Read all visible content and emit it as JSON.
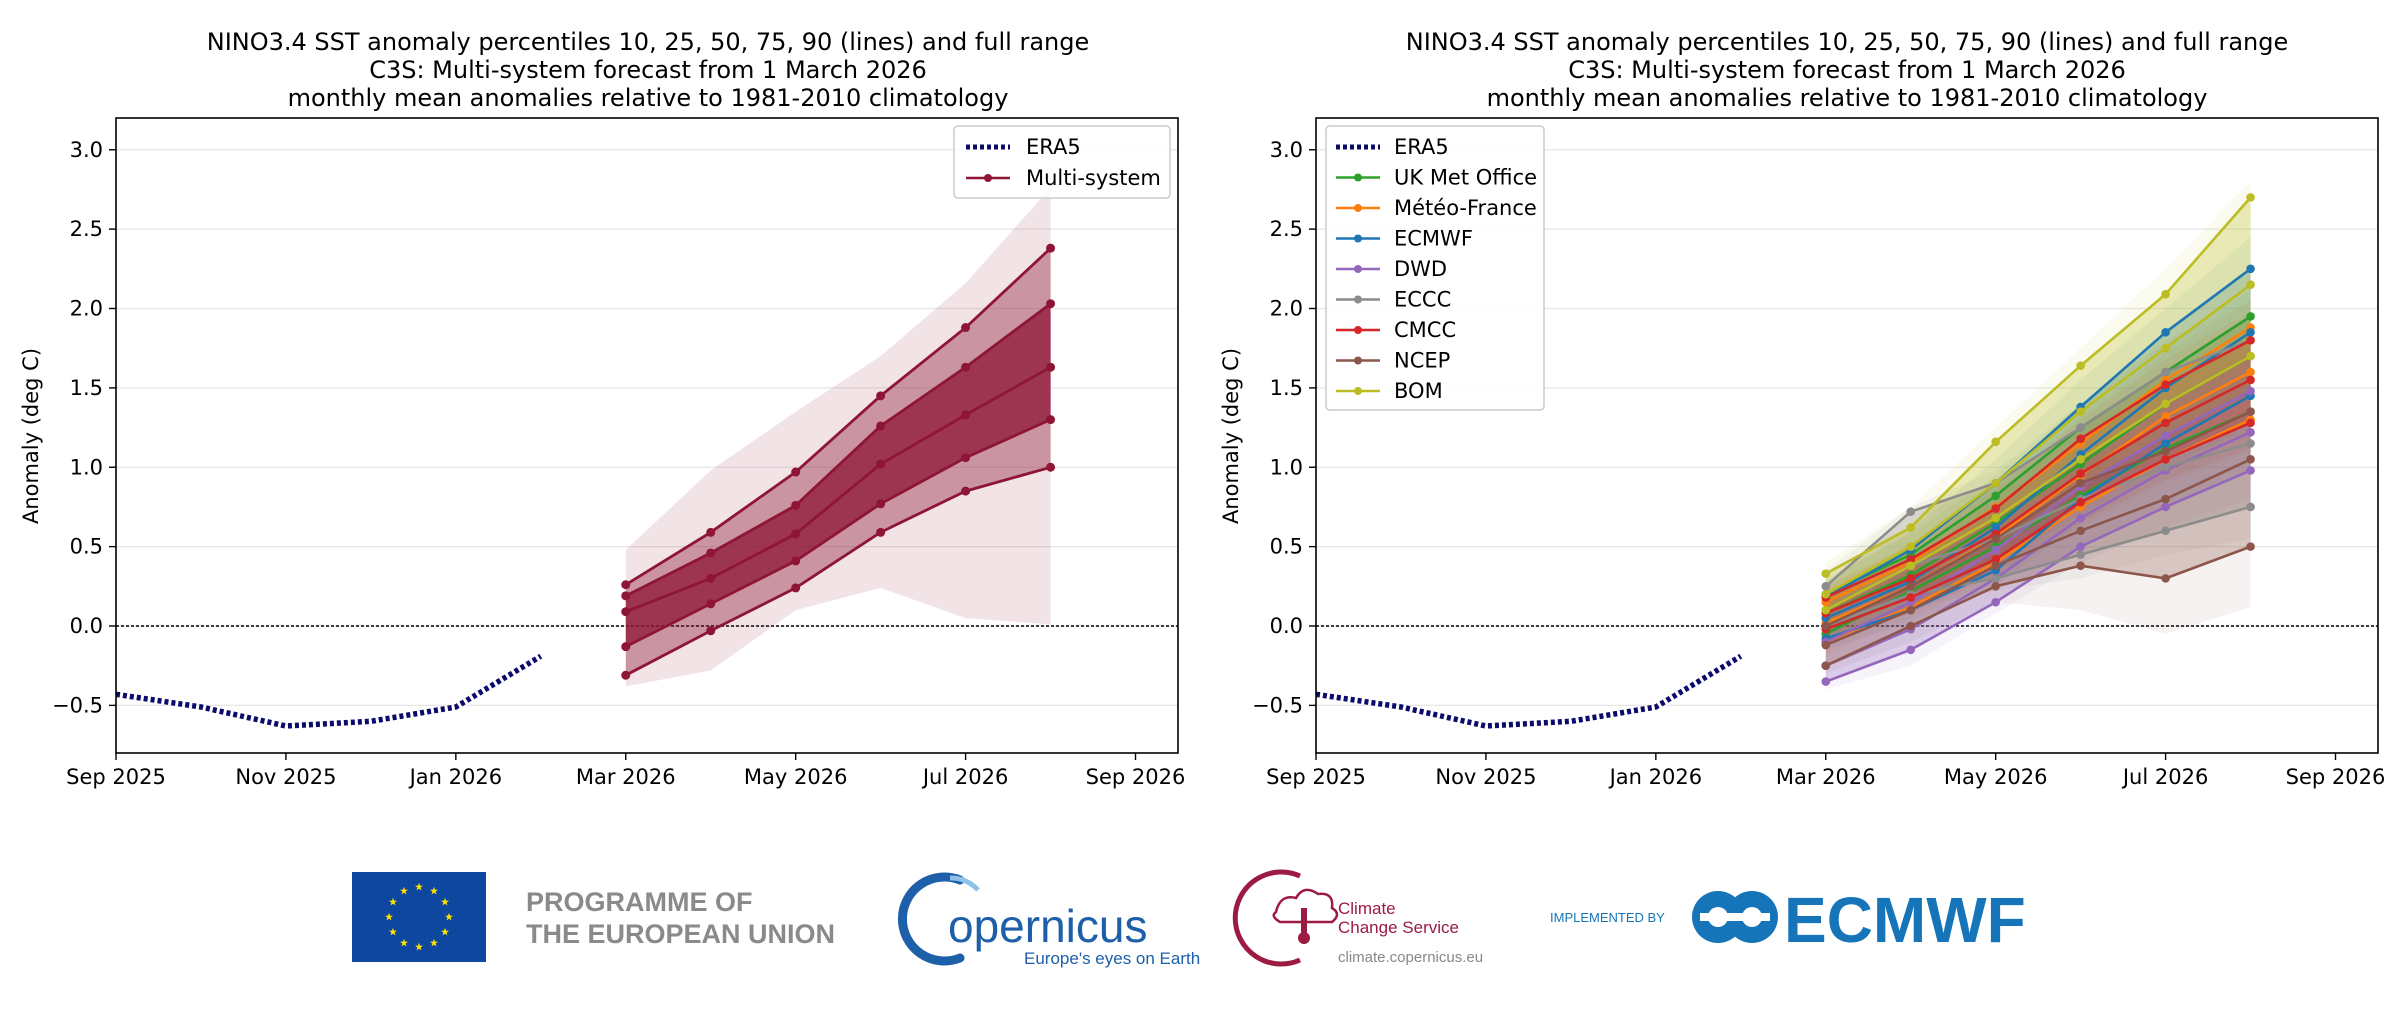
{
  "chart_data": [
    {
      "type": "line",
      "title_lines": [
        "NINO3.4 SST anomaly percentiles 10, 25, 50, 75, 90 (lines) and full range",
        "C3S: Multi-system forecast from 1 March 2026",
        "monthly mean anomalies relative to 1981-2010 climatology"
      ],
      "ylabel": "Anomaly (deg C)",
      "xlim": [
        0,
        12.5
      ],
      "ylim": [
        -0.8,
        3.2
      ],
      "x_ticks": [
        {
          "x": 0,
          "label": "Sep 2025"
        },
        {
          "x": 2,
          "label": "Nov 2025"
        },
        {
          "x": 4,
          "label": "Jan 2026"
        },
        {
          "x": 6,
          "label": "Mar 2026"
        },
        {
          "x": 8,
          "label": "May 2026"
        },
        {
          "x": 10,
          "label": "Jul 2026"
        },
        {
          "x": 12,
          "label": "Sep 2026"
        }
      ],
      "y_ticks": [
        {
          "y": -0.5,
          "label": "−0.5"
        },
        {
          "y": 0.0,
          "label": "0.0"
        },
        {
          "y": 0.5,
          "label": "0.5"
        },
        {
          "y": 1.0,
          "label": "1.0"
        },
        {
          "y": 1.5,
          "label": "1.5"
        },
        {
          "y": 2.0,
          "label": "2.0"
        },
        {
          "y": 2.5,
          "label": "2.5"
        },
        {
          "y": 3.0,
          "label": "3.0"
        }
      ],
      "era5": {
        "name": "ERA5",
        "color": "#0b0b6b",
        "x": [
          0,
          1,
          2,
          3,
          4,
          5
        ],
        "y": [
          -0.43,
          -0.51,
          -0.63,
          -0.6,
          -0.51,
          -0.19
        ]
      },
      "multi_system": {
        "name": "Multi-system",
        "color": "#8e1535",
        "x": [
          6,
          7,
          8,
          9,
          10,
          11
        ],
        "p10": [
          -0.31,
          -0.03,
          0.24,
          0.59,
          0.85,
          1.0
        ],
        "p25": [
          -0.13,
          0.14,
          0.41,
          0.77,
          1.06,
          1.3
        ],
        "p50": [
          0.09,
          0.3,
          0.58,
          1.02,
          1.33,
          1.63
        ],
        "p75": [
          0.19,
          0.46,
          0.76,
          1.26,
          1.63,
          2.03
        ],
        "p90": [
          0.26,
          0.59,
          0.97,
          1.45,
          1.88,
          2.38
        ],
        "range_min": [
          -0.38,
          -0.28,
          0.1,
          0.24,
          0.05,
          0.01
        ],
        "range_max": [
          0.48,
          0.98,
          1.35,
          1.7,
          2.16,
          2.76
        ]
      },
      "legend": {
        "position": "top-right",
        "entries": [
          "ERA5",
          "Multi-system"
        ]
      }
    },
    {
      "type": "line",
      "title_lines": [
        "NINO3.4 SST anomaly percentiles 10, 25, 50, 75, 90 (lines) and full range",
        "C3S: Multi-system forecast from 1 March 2026",
        "monthly mean anomalies relative to 1981-2010 climatology"
      ],
      "ylabel": "Anomaly (deg C)",
      "xlim": [
        0,
        12.5
      ],
      "ylim": [
        -0.8,
        3.2
      ],
      "x_ticks": [
        {
          "x": 0,
          "label": "Sep 2025"
        },
        {
          "x": 2,
          "label": "Nov 2025"
        },
        {
          "x": 4,
          "label": "Jan 2026"
        },
        {
          "x": 6,
          "label": "Mar 2026"
        },
        {
          "x": 8,
          "label": "May 2026"
        },
        {
          "x": 10,
          "label": "Jul 2026"
        },
        {
          "x": 12,
          "label": "Sep 2026"
        }
      ],
      "y_ticks": [
        {
          "y": -0.5,
          "label": "−0.5"
        },
        {
          "y": 0.0,
          "label": "0.0"
        },
        {
          "y": 0.5,
          "label": "0.5"
        },
        {
          "y": 1.0,
          "label": "1.0"
        },
        {
          "y": 1.5,
          "label": "1.5"
        },
        {
          "y": 2.0,
          "label": "2.0"
        },
        {
          "y": 2.5,
          "label": "2.5"
        },
        {
          "y": 3.0,
          "label": "3.0"
        }
      ],
      "era5": {
        "name": "ERA5",
        "color": "#0b0b6b",
        "x": [
          0,
          1,
          2,
          3,
          4,
          5
        ],
        "y": [
          -0.43,
          -0.51,
          -0.63,
          -0.6,
          -0.51,
          -0.19
        ]
      },
      "x_forecast": [
        6,
        7,
        8,
        9,
        10,
        11
      ],
      "series": [
        {
          "name": "UK Met Office",
          "color": "#2ca02c",
          "p10": [
            -0.05,
            0.22,
            0.5,
            0.82,
            1.12,
            1.35
          ],
          "p50": [
            0.08,
            0.32,
            0.65,
            1.02,
            1.4,
            1.7
          ],
          "p90": [
            0.2,
            0.45,
            0.82,
            1.25,
            1.6,
            1.95
          ],
          "range_min": [
            -0.12,
            0.12,
            0.38,
            0.7,
            0.98,
            1.2
          ],
          "range_max": [
            0.3,
            0.58,
            0.95,
            1.4,
            1.78,
            2.12
          ]
        },
        {
          "name": "Météo-France",
          "color": "#ff7f0e",
          "p10": [
            -0.1,
            0.12,
            0.4,
            0.75,
            1.05,
            1.3
          ],
          "p50": [
            0.02,
            0.25,
            0.56,
            0.95,
            1.32,
            1.6
          ],
          "p90": [
            0.15,
            0.4,
            0.75,
            1.15,
            1.55,
            1.88
          ],
          "range_min": [
            -0.18,
            0.05,
            0.3,
            0.62,
            0.9,
            1.1
          ],
          "range_max": [
            0.25,
            0.5,
            0.88,
            1.32,
            1.72,
            2.05
          ]
        },
        {
          "name": "ECMWF",
          "color": "#1f77b4",
          "p10": [
            -0.08,
            0.1,
            0.35,
            0.8,
            1.15,
            1.45
          ],
          "p50": [
            0.05,
            0.28,
            0.62,
            1.08,
            1.5,
            1.85
          ],
          "p90": [
            0.18,
            0.48,
            0.9,
            1.38,
            1.85,
            2.25
          ],
          "range_min": [
            -0.15,
            0.02,
            0.25,
            0.65,
            1.0,
            1.25
          ],
          "range_max": [
            0.28,
            0.6,
            1.05,
            1.55,
            2.0,
            2.45
          ]
        },
        {
          "name": "DWD",
          "color": "#9467bd",
          "p10": [
            -0.35,
            -0.15,
            0.15,
            0.5,
            0.75,
            0.98
          ],
          "p50": [
            -0.25,
            -0.02,
            0.3,
            0.68,
            0.98,
            1.22
          ],
          "p90": [
            -0.1,
            0.15,
            0.48,
            0.88,
            1.2,
            1.48
          ],
          "range_min": [
            -0.4,
            -0.25,
            0.08,
            0.4,
            0.62,
            0.8
          ],
          "range_max": [
            0.0,
            0.28,
            0.62,
            1.05,
            1.38,
            1.65
          ]
        },
        {
          "name": "ECCC",
          "color": "#8c8c8c",
          "p10": [
            0.0,
            0.2,
            0.3,
            0.45,
            0.6,
            0.75
          ],
          "p50": [
            0.1,
            0.38,
            0.55,
            0.8,
            1.0,
            1.15
          ],
          "p90": [
            0.25,
            0.72,
            0.9,
            1.25,
            1.6,
            1.8
          ],
          "range_min": [
            -0.08,
            0.12,
            0.22,
            0.3,
            0.45,
            0.55
          ],
          "range_max": [
            0.35,
            0.75,
            0.98,
            1.4,
            1.8,
            2.05
          ]
        },
        {
          "name": "CMCC",
          "color": "#d62728",
          "p10": [
            -0.02,
            0.18,
            0.42,
            0.78,
            1.05,
            1.28
          ],
          "p50": [
            0.08,
            0.3,
            0.58,
            0.96,
            1.28,
            1.55
          ],
          "p90": [
            0.18,
            0.42,
            0.74,
            1.18,
            1.52,
            1.8
          ],
          "range_min": [
            -0.1,
            0.08,
            0.32,
            0.65,
            0.92,
            1.12
          ],
          "range_max": [
            0.25,
            0.52,
            0.85,
            1.3,
            1.68,
            1.98
          ]
        },
        {
          "name": "NCEP",
          "color": "#8c564b",
          "p10": [
            -0.25,
            0.0,
            0.25,
            0.38,
            0.3,
            0.5
          ],
          "p50": [
            -0.12,
            0.1,
            0.38,
            0.6,
            0.8,
            1.05
          ],
          "p90": [
            0.0,
            0.25,
            0.55,
            0.9,
            1.1,
            1.35
          ],
          "range_min": [
            -0.3,
            -0.1,
            0.15,
            0.1,
            -0.05,
            0.12
          ],
          "range_max": [
            0.1,
            0.35,
            0.68,
            1.05,
            1.28,
            1.55
          ]
        },
        {
          "name": "BOM",
          "color": "#bcbd22",
          "p10": [
            0.1,
            0.38,
            0.68,
            1.05,
            1.4,
            1.7
          ],
          "p50": [
            0.2,
            0.5,
            0.9,
            1.35,
            1.75,
            2.15
          ],
          "p90": [
            0.33,
            0.62,
            1.16,
            1.64,
            2.09,
            2.7
          ],
          "range_min": [
            0.02,
            0.28,
            0.55,
            0.9,
            1.2,
            1.45
          ],
          "range_max": [
            0.4,
            0.75,
            1.25,
            1.75,
            2.25,
            2.8
          ]
        }
      ],
      "legend": {
        "position": "top-left",
        "entries": [
          "ERA5",
          "UK Met Office",
          "Météo-France",
          "ECMWF",
          "DWD",
          "ECCC",
          "CMCC",
          "NCEP",
          "BOM"
        ]
      }
    }
  ],
  "logos": {
    "eu_line1": "PROGRAMME OF",
    "eu_line2": "THE EUROPEAN UNION",
    "copernicus": "opernicus",
    "copernicus_tagline": "Europe's eyes on Earth",
    "c3s_line1": "Climate",
    "c3s_line2": "Change Service",
    "c3s_url": "climate.copernicus.eu",
    "implemented_by": "IMPLEMENTED BY",
    "ecmwf": "ECMWF",
    "colors": {
      "eu_blue": "#0e47a0",
      "eu_star": "#ffe100",
      "copernicus_blue": "#1d5fa8",
      "c3s_red": "#9b1b42",
      "ecmwf_blue": "#1674b8"
    }
  }
}
